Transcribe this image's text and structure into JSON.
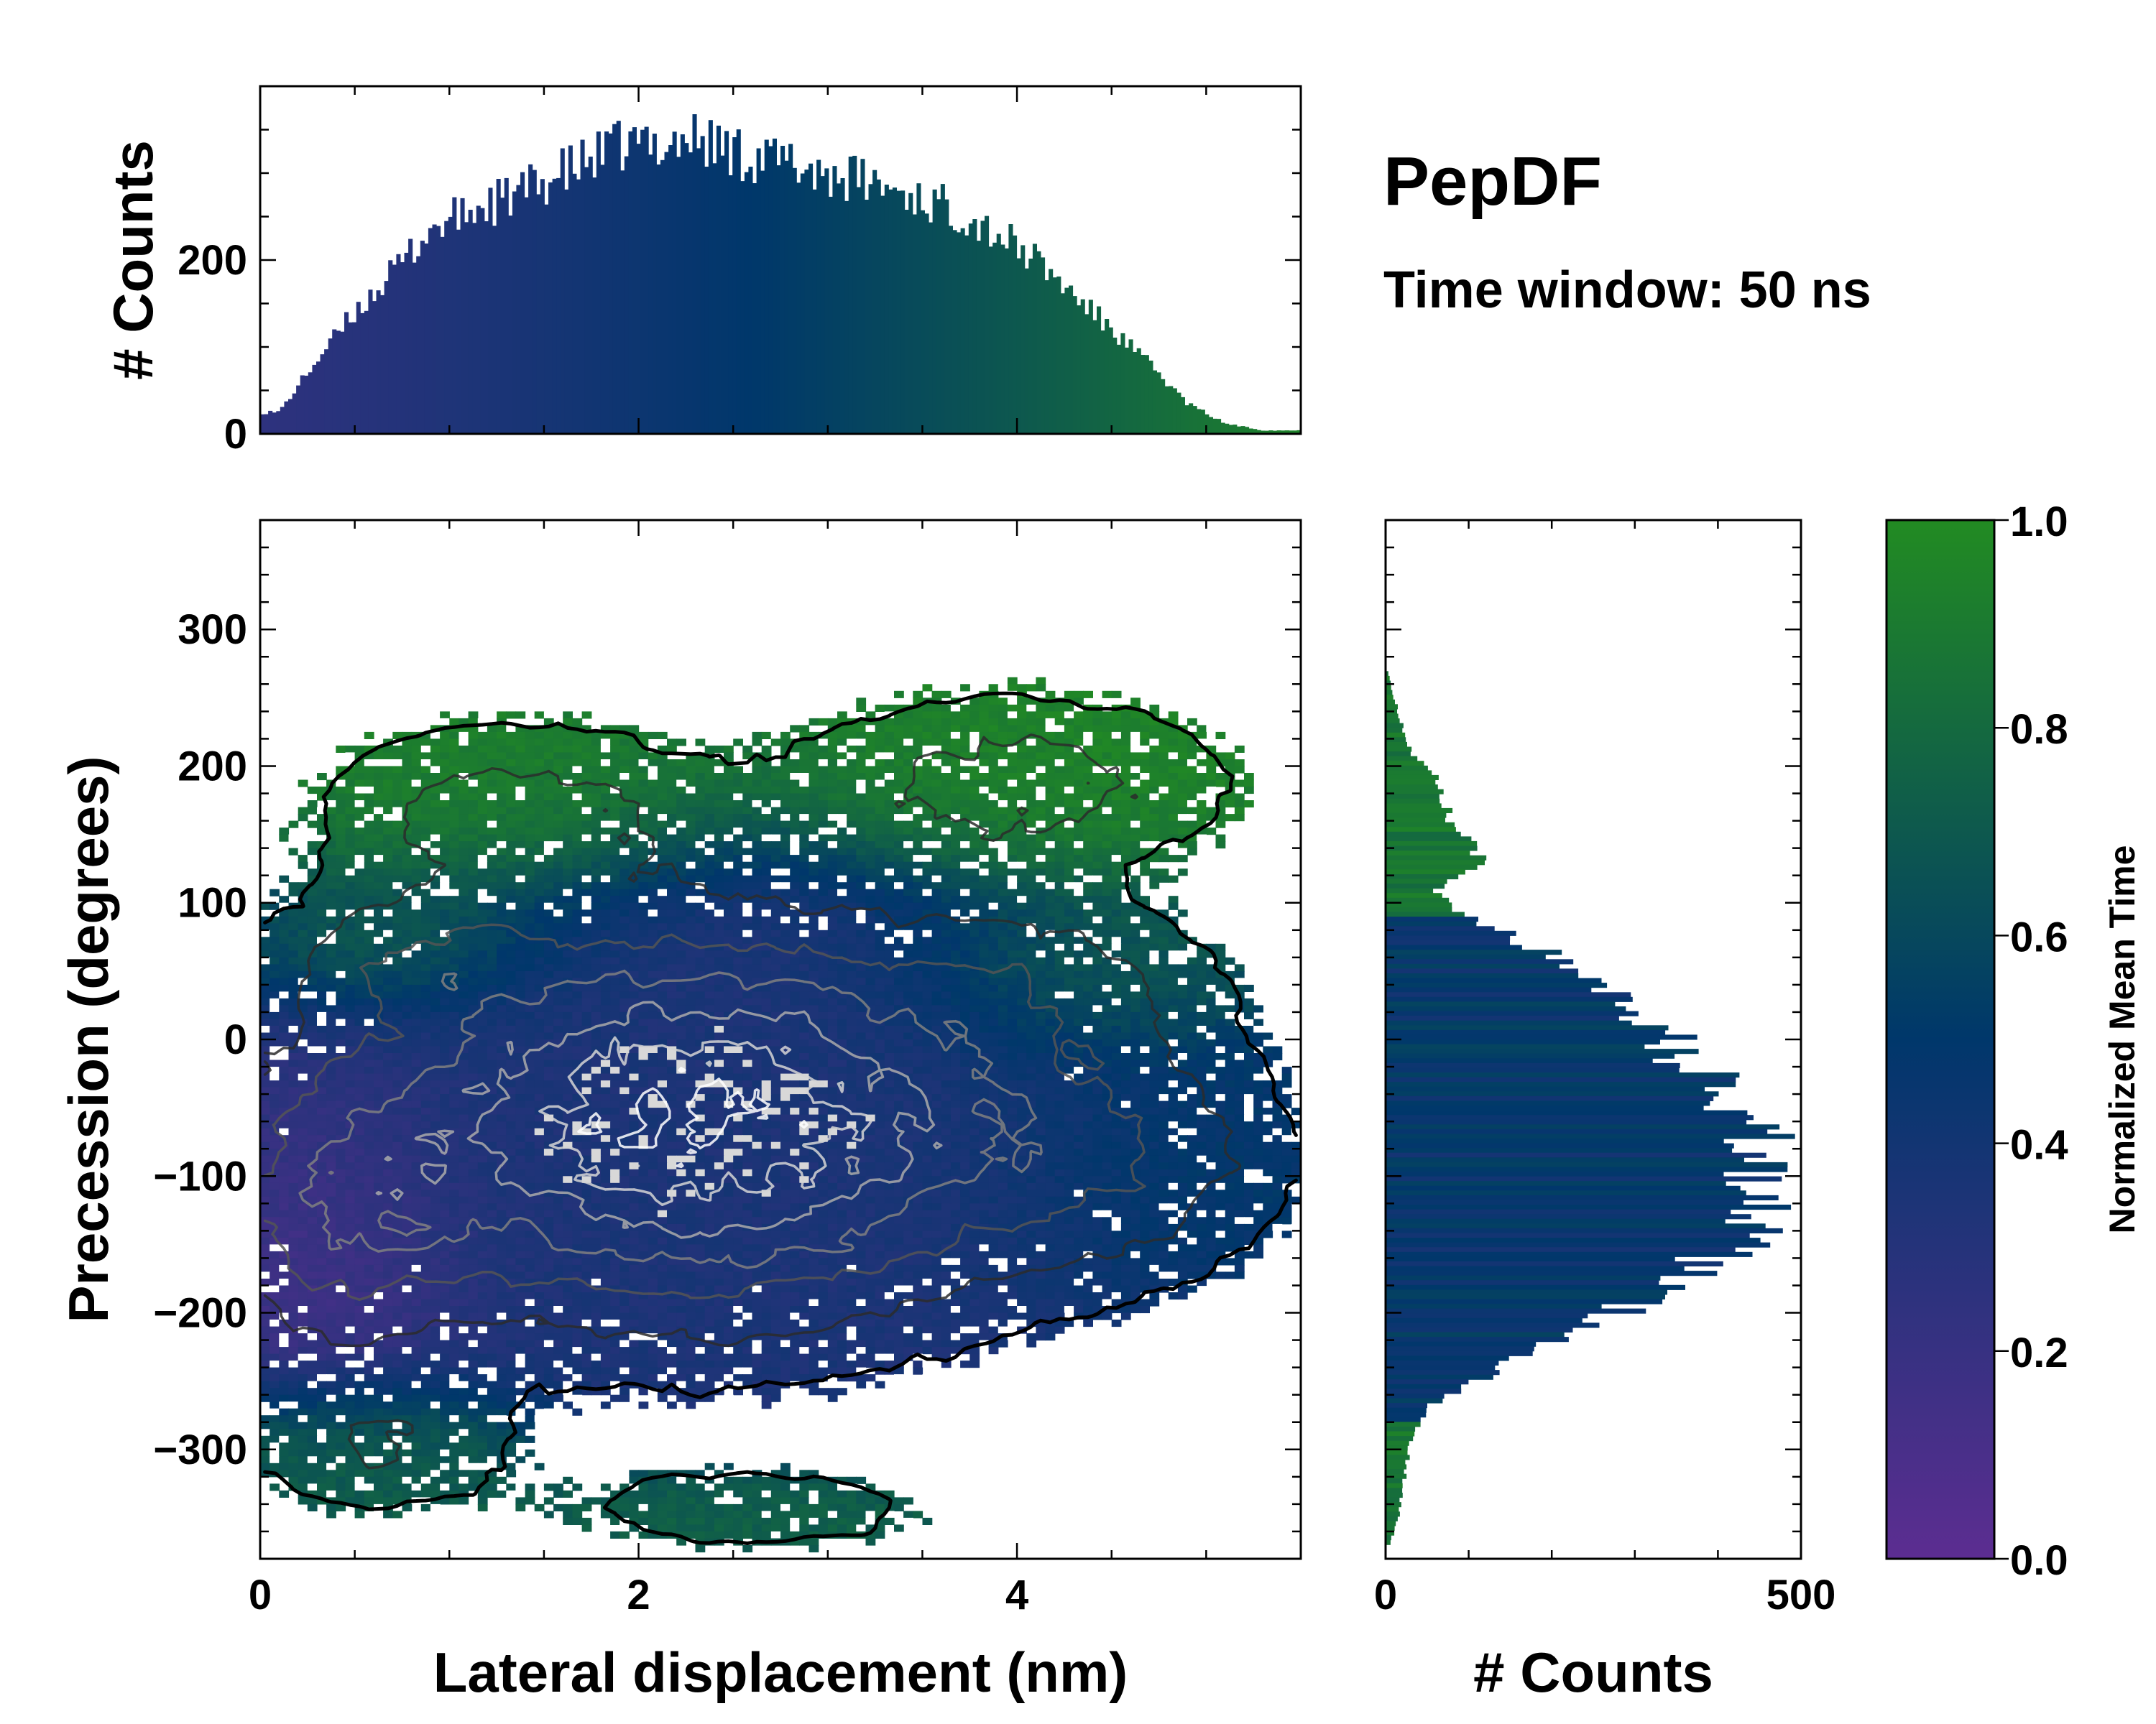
{
  "annotation": {
    "title": "PepDF",
    "subtitle": "Time window: 50 ns"
  },
  "colors": {
    "purple": "#5c2d91",
    "blue": "#00376b",
    "green": "#228b22",
    "contour_outer": "#000000",
    "contour_inner": "#ffffff"
  },
  "chart_data": [
    {
      "id": "main",
      "type": "heatmap",
      "xlabel": "Lateral displacement (nm)",
      "ylabel": "Precession (degrees)",
      "xlim": [
        0,
        5.5
      ],
      "ylim": [
        -380,
        380
      ],
      "xticks": [
        0,
        2,
        4
      ],
      "xtick_labels": [
        "0",
        "2",
        "4"
      ],
      "yticks": [
        -300,
        -200,
        -100,
        0,
        100,
        200,
        300
      ],
      "ytick_labels": [
        "−300",
        "−200",
        "−100",
        "0",
        "100",
        "200",
        "300"
      ],
      "color_value": "Normalized Mean Time",
      "density_clusters": [
        {
          "x": 2.3,
          "y": -60,
          "sx": 1.25,
          "sy": 95,
          "w": 1.0,
          "t": 0.35
        },
        {
          "x": 0.4,
          "y": -130,
          "sx": 0.45,
          "sy": 70,
          "w": 0.35,
          "t": 0.1
        },
        {
          "x": 1.3,
          "y": 170,
          "sx": 0.7,
          "sy": 45,
          "w": 0.28,
          "t": 0.95
        },
        {
          "x": 4.0,
          "y": 190,
          "sx": 0.8,
          "sy": 45,
          "w": 0.3,
          "t": 0.95
        },
        {
          "x": 0.8,
          "y": 60,
          "sx": 0.5,
          "sy": 30,
          "w": 0.22,
          "t": 0.9
        },
        {
          "x": 0.6,
          "y": -300,
          "sx": 0.5,
          "sy": 35,
          "w": 0.22,
          "t": 0.75
        },
        {
          "x": 2.6,
          "y": -345,
          "sx": 0.7,
          "sy": 22,
          "w": 0.2,
          "t": 0.75
        },
        {
          "x": 4.6,
          "y": -90,
          "sx": 0.6,
          "sy": 55,
          "w": 0.25,
          "t": 0.55
        },
        {
          "x": 4.2,
          "y": 40,
          "sx": 0.6,
          "sy": 40,
          "w": 0.2,
          "t": 0.85
        }
      ]
    },
    {
      "id": "top-histogram",
      "type": "bar",
      "ylabel": "# Counts",
      "xlim": [
        0,
        5.5
      ],
      "ylim": [
        0,
        400
      ],
      "yticks": [
        0,
        200
      ],
      "ytick_labels": [
        "0",
        "200"
      ],
      "bin_centers": [
        0.1,
        0.3,
        0.5,
        0.7,
        0.9,
        1.1,
        1.3,
        1.5,
        1.7,
        1.9,
        2.1,
        2.3,
        2.5,
        2.7,
        2.9,
        3.1,
        3.3,
        3.5,
        3.7,
        3.9,
        4.1,
        4.3,
        4.5,
        4.7,
        4.9,
        5.1,
        5.3
      ],
      "values": [
        25,
        85,
        140,
        185,
        235,
        255,
        270,
        290,
        310,
        330,
        335,
        340,
        325,
        315,
        305,
        295,
        285,
        270,
        255,
        230,
        200,
        160,
        120,
        80,
        35,
        12,
        4
      ]
    },
    {
      "id": "right-histogram",
      "type": "bar",
      "orientation": "horizontal",
      "xlabel": "# Counts",
      "xlim": [
        0,
        500
      ],
      "ylim": [
        -380,
        380
      ],
      "xticks": [
        0,
        500
      ],
      "xtick_labels": [
        "0",
        "500"
      ],
      "bin_centers": [
        -370,
        -350,
        -330,
        -310,
        -290,
        -270,
        -250,
        -230,
        -210,
        -190,
        -170,
        -150,
        -130,
        -110,
        -90,
        -70,
        -50,
        -30,
        -10,
        10,
        30,
        50,
        70,
        90,
        110,
        130,
        150,
        170,
        190,
        210,
        230,
        250,
        270
      ],
      "values": [
        5,
        15,
        20,
        25,
        30,
        50,
        110,
        170,
        245,
        310,
        370,
        420,
        440,
        450,
        470,
        440,
        420,
        400,
        350,
        330,
        290,
        240,
        170,
        100,
        60,
        120,
        90,
        70,
        60,
        30,
        20,
        10,
        3
      ]
    },
    {
      "id": "colorbar",
      "type": "colorbar",
      "label": "Normalized Mean Time",
      "range": [
        0,
        1
      ],
      "ticks": [
        0.0,
        0.2,
        0.4,
        0.6,
        0.8,
        1.0
      ],
      "tick_labels": [
        "0.0",
        "0.2",
        "0.4",
        "0.6",
        "0.8",
        "1.0"
      ]
    }
  ]
}
